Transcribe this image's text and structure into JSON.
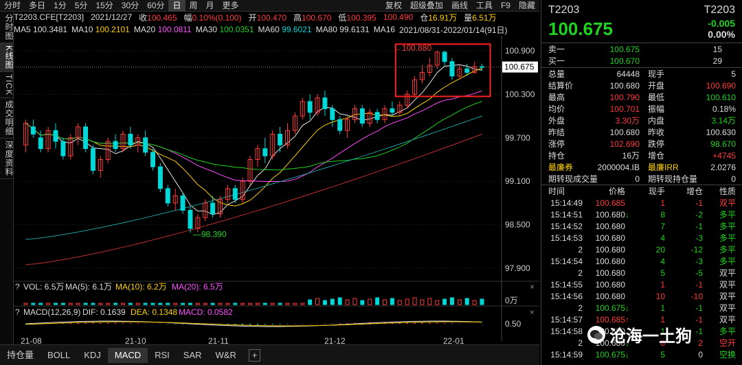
{
  "toolbar": {
    "items": [
      "分时",
      "多日",
      "1分",
      "5分",
      "15分",
      "30分",
      "60分",
      "日",
      "周",
      "月",
      "更多"
    ],
    "items2": [
      "复权",
      "超级叠加",
      "画线",
      "工具",
      "F9",
      "隐藏"
    ]
  },
  "info": {
    "symbol": "T2203.CFE[T2203]",
    "date": "2021/12/27",
    "close_label": "收",
    "close": "100.465",
    "chg_label": "幅",
    "chg": "0.10%(0.100)",
    "open_label": "开",
    "open": "100.470",
    "high_label": "高",
    "high": "100.670",
    "low_label": "低",
    "low": "100.395",
    "last": "100.490",
    "oi_label": "仓",
    "oi": "16.91万",
    "vol_label": "量",
    "vol": "6.51万"
  },
  "ma": {
    "ma5_label": "MA5",
    "ma5": "100.3481",
    "ma10_label": "MA10",
    "ma10": "100.2101",
    "ma20_label": "MA20",
    "ma20": "100.0811",
    "ma30_label": "MA30",
    "ma30": "100.0351",
    "ma60_label": "MA60",
    "ma60": "99.6021",
    "ma80_label": "MA80",
    "ma80": "99.6131",
    "ma160_label": "MA16",
    "range": "2021/08/31-2022/01/14(91日)"
  },
  "vtabs": [
    "分时图",
    "K线图",
    "TICK",
    "成交明细",
    "深度资料"
  ],
  "chart_data": {
    "type": "candlestick",
    "price_axis": [
      "100.900",
      "100.300",
      "99.700",
      "99.100",
      "98.500",
      "97.900"
    ],
    "price_ticks": [
      100.9,
      100.3,
      99.7,
      99.1,
      98.5,
      97.9
    ],
    "current_price": "100.675",
    "current": 100.675,
    "max_label": "100.880",
    "max": 100.88,
    "min_label": "98.390",
    "min": 98.39,
    "x_labels": [
      "21-08",
      "21-10",
      "21-11",
      "21-12",
      "22-01"
    ],
    "vol_axis": [
      "0万"
    ],
    "macd_axis": [
      "0.50"
    ],
    "vol_panel": {
      "label": "VOL: 6.5万",
      "ma5": "MA(5): 6.1万",
      "ma10": "MA(10): 6.2万",
      "ma20": "MA(20): 6.5万"
    },
    "macd_panel": {
      "label": "MACD(12,26,9)",
      "dif": "DIF: 0.1639",
      "dea": "DEA: 0.1348",
      "macd": "MACD: 0.0582"
    },
    "candles": [
      [
        99.6,
        99.9,
        99.5,
        99.95
      ],
      [
        99.85,
        99.75,
        99.7,
        99.95
      ],
      [
        99.7,
        99.55,
        99.5,
        99.8
      ],
      [
        99.55,
        99.8,
        99.5,
        99.85
      ],
      [
        99.8,
        99.65,
        99.55,
        99.9
      ],
      [
        99.65,
        99.45,
        99.4,
        99.7
      ],
      [
        99.45,
        99.7,
        99.4,
        99.75
      ],
      [
        99.7,
        99.85,
        99.6,
        99.9
      ],
      [
        99.85,
        99.55,
        99.5,
        99.9
      ],
      [
        99.55,
        99.25,
        99.2,
        99.6
      ],
      [
        99.25,
        99.4,
        99.15,
        99.45
      ],
      [
        99.4,
        99.65,
        99.35,
        99.7
      ],
      [
        99.65,
        99.55,
        99.5,
        99.75
      ],
      [
        99.55,
        99.75,
        99.5,
        99.8
      ],
      [
        99.75,
        99.6,
        99.55,
        99.85
      ],
      [
        99.6,
        99.7,
        99.5,
        99.75
      ],
      [
        99.7,
        99.5,
        99.45,
        99.8
      ],
      [
        99.5,
        99.3,
        99.25,
        99.55
      ],
      [
        99.3,
        99.0,
        98.95,
        99.35
      ],
      [
        99.0,
        98.8,
        98.75,
        99.05
      ],
      [
        98.8,
        98.9,
        98.7,
        99.0
      ],
      [
        98.9,
        98.7,
        98.65,
        98.95
      ],
      [
        98.7,
        98.45,
        98.39,
        98.75
      ],
      [
        98.45,
        98.6,
        98.4,
        98.65
      ],
      [
        98.6,
        98.8,
        98.55,
        98.85
      ],
      [
        98.8,
        98.65,
        98.6,
        98.9
      ],
      [
        98.65,
        98.85,
        98.6,
        98.9
      ],
      [
        98.85,
        99.0,
        98.8,
        99.05
      ],
      [
        99.0,
        98.85,
        98.8,
        99.05
      ],
      [
        98.85,
        99.1,
        98.8,
        99.15
      ],
      [
        99.1,
        99.4,
        99.05,
        99.45
      ],
      [
        99.4,
        99.55,
        99.3,
        99.6
      ],
      [
        99.55,
        99.45,
        99.35,
        99.7
      ],
      [
        99.45,
        99.75,
        99.4,
        99.8
      ],
      [
        99.75,
        99.6,
        99.5,
        99.85
      ],
      [
        99.6,
        99.8,
        99.55,
        99.9
      ],
      [
        99.8,
        100.0,
        99.75,
        100.05
      ],
      [
        100.0,
        100.2,
        99.95,
        100.25
      ],
      [
        100.2,
        100.05,
        99.95,
        100.3
      ],
      [
        100.05,
        100.25,
        100.0,
        100.3
      ],
      [
        100.25,
        100.1,
        100.0,
        100.35
      ],
      [
        100.1,
        99.95,
        99.85,
        100.15
      ],
      [
        99.95,
        99.8,
        99.75,
        100.0
      ],
      [
        99.8,
        99.95,
        99.7,
        100.0
      ],
      [
        99.95,
        100.1,
        99.9,
        100.15
      ],
      [
        100.1,
        99.9,
        99.85,
        100.15
      ],
      [
        99.9,
        100.05,
        99.85,
        100.1
      ],
      [
        100.05,
        99.95,
        99.9,
        100.1
      ],
      [
        99.95,
        100.1,
        99.9,
        100.15
      ],
      [
        100.1,
        100.05,
        100.0,
        100.2
      ],
      [
        100.05,
        100.15,
        100.0,
        100.2
      ],
      [
        100.15,
        100.3,
        100.1,
        100.35
      ],
      [
        100.3,
        100.5,
        100.25,
        100.55
      ],
      [
        100.5,
        100.6,
        100.45,
        100.7
      ],
      [
        100.6,
        100.7,
        100.55,
        100.8
      ],
      [
        100.7,
        100.88,
        100.65,
        100.9
      ],
      [
        100.88,
        100.75,
        100.7,
        100.9
      ],
      [
        100.75,
        100.55,
        100.5,
        100.8
      ],
      [
        100.55,
        100.65,
        100.5,
        100.7
      ],
      [
        100.65,
        100.6,
        100.55,
        100.72
      ],
      [
        100.6,
        100.68,
        100.58,
        100.75
      ],
      [
        100.68,
        100.675,
        100.62,
        100.72
      ]
    ],
    "ma_lines": [
      {
        "name": "MA5",
        "color": "#e8e8e8"
      },
      {
        "name": "MA10",
        "color": "#ffd200"
      },
      {
        "name": "MA20",
        "color": "#ff4dff"
      },
      {
        "name": "MA30",
        "color": "#21d321"
      },
      {
        "name": "MA60",
        "color": "#1e9e9e"
      },
      {
        "name": "MA160",
        "color": "#c03030"
      }
    ]
  },
  "bottom_tabs": [
    "持仓量",
    "BOLL",
    "KDJ",
    "MACD",
    "RSI",
    "SAR",
    "W&R"
  ],
  "quote": {
    "symbol": "T2203",
    "symbol2": "T2203",
    "price": "100.675",
    "change": "-0.005",
    "pct": "0.00%",
    "sell_label": "卖一",
    "sell_price": "100.675",
    "sell_qty": "15",
    "buy_label": "买一",
    "buy_price": "100.670",
    "buy_qty": "29",
    "stats": [
      [
        "总量",
        "64448",
        "现手",
        "5"
      ],
      [
        "结算价",
        "100.680",
        "开盘",
        "100.690"
      ],
      [
        "最高",
        "100.790",
        "最低",
        "100.610"
      ],
      [
        "均价",
        "100.701",
        "振幅",
        "0.18%"
      ],
      [
        "外盘",
        "3.30万",
        "内盘",
        "3.14万"
      ],
      [
        "昨结",
        "100.680",
        "昨收",
        "100.630"
      ],
      [
        "涨停",
        "102.690",
        "跌停",
        "98.670"
      ],
      [
        "持仓",
        "16万",
        "增仓",
        "+4745"
      ],
      [
        "最廉券",
        "2000004.IB",
        "最廉IRR",
        "2.0276"
      ],
      [
        "期转现成交量",
        "0",
        "期转现持仓量",
        "0"
      ]
    ],
    "trades_header": [
      "时间",
      "价格",
      "现手",
      "增仓",
      "性质"
    ],
    "trades": [
      [
        "15:14:49",
        "100.685",
        "",
        "1",
        "-1",
        "双平",
        "red",
        "red",
        "red",
        "red"
      ],
      [
        "15:14:51",
        "100.680",
        "↓",
        "8",
        "-2",
        "多平",
        "white",
        "green",
        "green",
        "green"
      ],
      [
        "15:14:52",
        "100.680",
        "",
        "7",
        "-1",
        "多平",
        "white",
        "green",
        "green",
        "green"
      ],
      [
        "15:14:53",
        "100.680",
        "",
        "4",
        "-3",
        "多平",
        "white",
        "green",
        "green",
        "green"
      ],
      [
        "2",
        "100.680",
        "",
        "20",
        "-12",
        "多平",
        "white",
        "green",
        "green",
        "green"
      ],
      [
        "15:14:54",
        "100.680",
        "",
        "4",
        "-3",
        "多平",
        "white",
        "green",
        "green",
        "green"
      ],
      [
        "2",
        "100.680",
        "",
        "5",
        "-5",
        "双平",
        "white",
        "green",
        "green",
        "white"
      ],
      [
        "15:14:55",
        "100.680",
        "",
        "1",
        "-1",
        "双平",
        "white",
        "red",
        "red",
        "white"
      ],
      [
        "15:14:56",
        "100.680",
        "",
        "10",
        "-10",
        "双平",
        "white",
        "red",
        "red",
        "white"
      ],
      [
        "2",
        "100.675",
        "↓",
        "1",
        "-1",
        "双平",
        "green",
        "green",
        "green",
        "white"
      ],
      [
        "15:14:57",
        "100.685",
        "↑",
        "1",
        "-1",
        "双平",
        "red",
        "red",
        "red",
        "white"
      ],
      [
        "15:14:58",
        "100.680",
        "",
        "1",
        "-1",
        "多平",
        "white",
        "green",
        "green",
        "green"
      ],
      [
        "2",
        "100.680",
        "↓",
        "8",
        "2",
        "空开",
        "white",
        "red",
        "red",
        "red"
      ],
      [
        "15:14:59",
        "100.675",
        "↓",
        "5",
        "0",
        "空换",
        "green",
        "green",
        "white",
        "green"
      ]
    ]
  },
  "watermark": "沧海一土狗"
}
